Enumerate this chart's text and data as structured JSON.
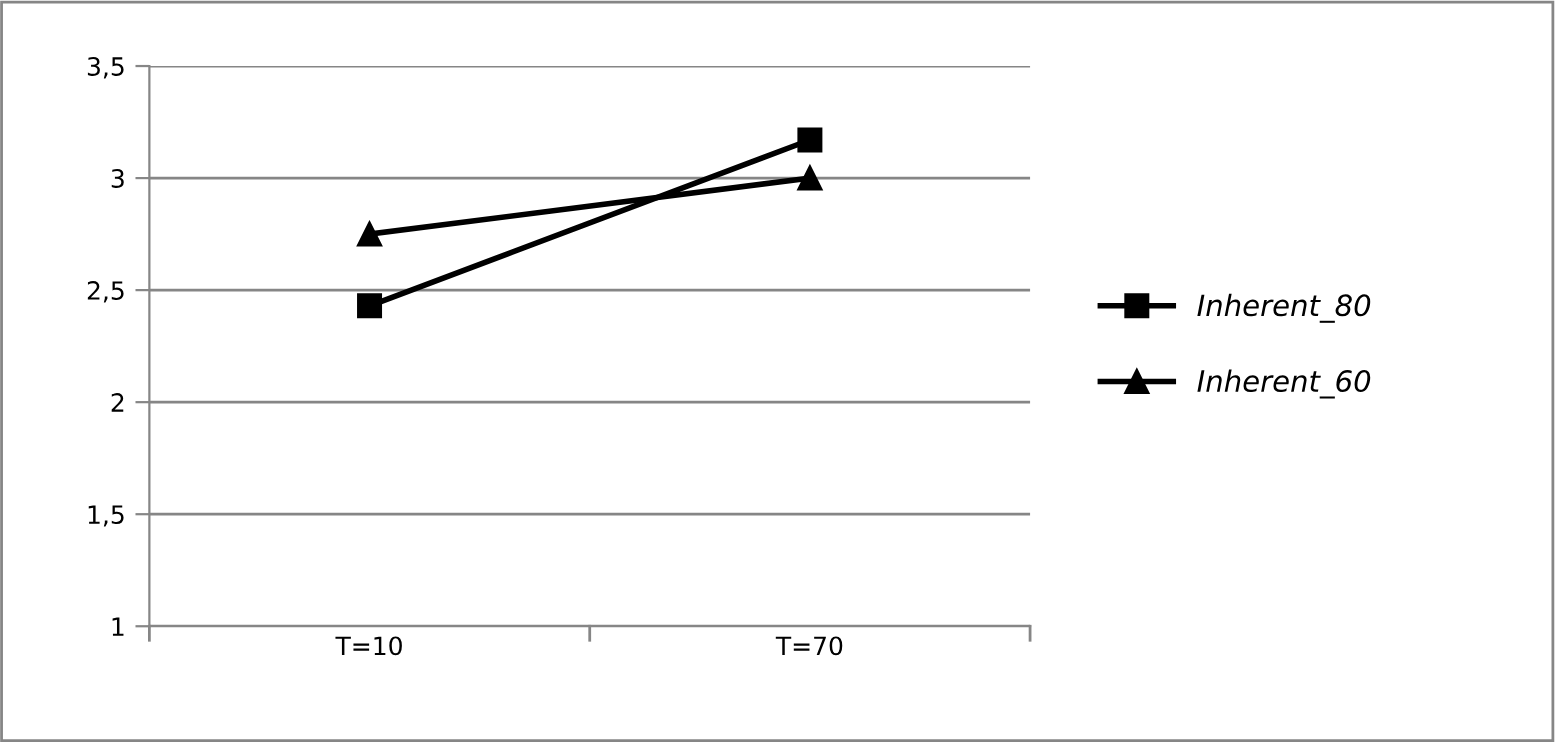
{
  "chart_data": {
    "type": "line",
    "categories": [
      "T=10",
      "T=70"
    ],
    "series": [
      {
        "name": "Inherent_80",
        "color": "#000000",
        "values": [
          2.43,
          3.17
        ],
        "marker": "square"
      },
      {
        "name": "Inherent_60",
        "color": "#000000",
        "values": [
          2.75,
          3.0
        ],
        "marker": "triangle"
      }
    ],
    "ylim": [
      1,
      3.5
    ],
    "yticks": [
      1,
      {
        "value": 1.5,
        "label": "1,5"
      },
      2,
      {
        "value": 2.5,
        "label": "2,5"
      },
      3,
      {
        "value": 3.5,
        "label": "3,5"
      }
    ],
    "grid": "y",
    "legend": "right",
    "line_style": "solid"
  }
}
